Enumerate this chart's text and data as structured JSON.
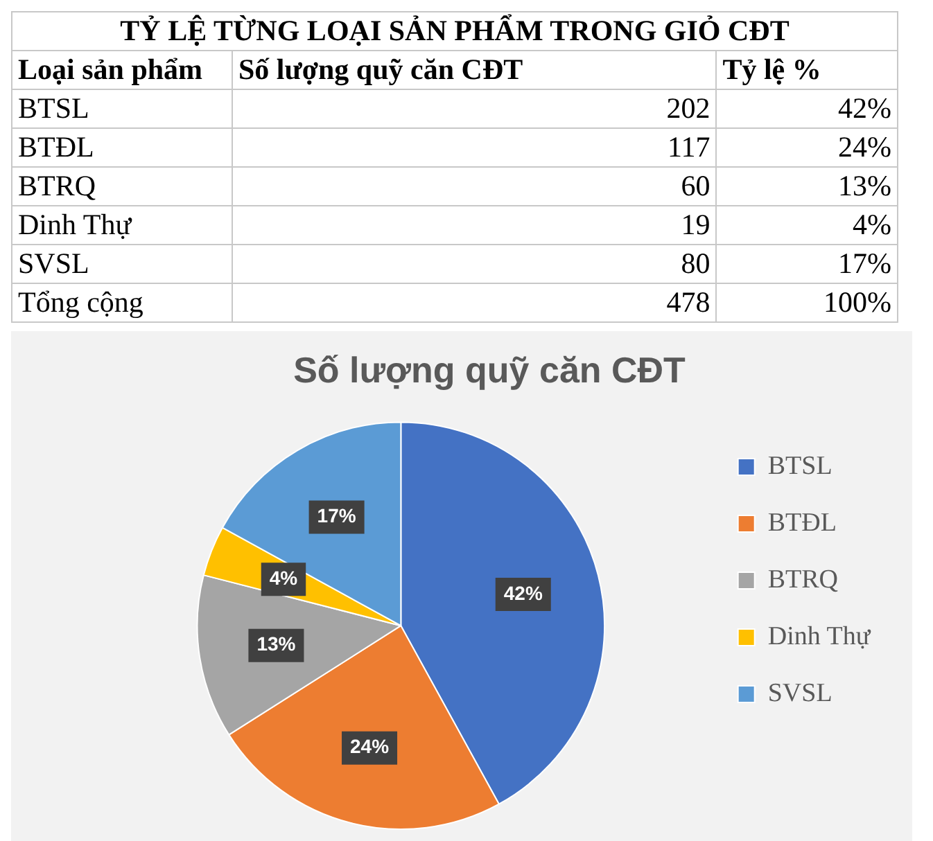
{
  "chart_data": [
    {
      "type": "other",
      "data_labels": true,
      "title": "TỶ LỆ TỪNG LOẠI SẢN PHẨM TRONG GIỎ CĐT",
      "xlabel": "Loại sản phẩm",
      "categories": [
        "BTSL",
        "BTĐL",
        "BTRQ",
        "Dinh Thự",
        "SVSL",
        "Tổng cộng"
      ],
      "series": [
        {
          "name": "Số lượng quỹ căn CĐT",
          "values": [
            202,
            117,
            60,
            19,
            80,
            478
          ]
        },
        {
          "name": "Tỷ lệ %",
          "values": [
            42,
            24,
            13,
            4,
            17,
            100
          ],
          "value_labels": [
            "42%",
            "24%",
            "13%",
            "4%",
            "17%",
            "100%"
          ]
        }
      ]
    },
    {
      "type": "pie",
      "title": "Số lượng quỹ căn CĐT",
      "categories": [
        "BTSL",
        "BTĐL",
        "BTRQ",
        "Dinh Thự",
        "SVSL"
      ],
      "values": [
        42,
        24,
        13,
        4,
        17
      ],
      "colors": [
        "#4472c4",
        "#ed7d31",
        "#a5a5a5",
        "#ffc000",
        "#5b9bd5"
      ],
      "value_labels": [
        "42%",
        "24%",
        "13%",
        "4%",
        "17%"
      ],
      "legend": "right"
    }
  ]
}
